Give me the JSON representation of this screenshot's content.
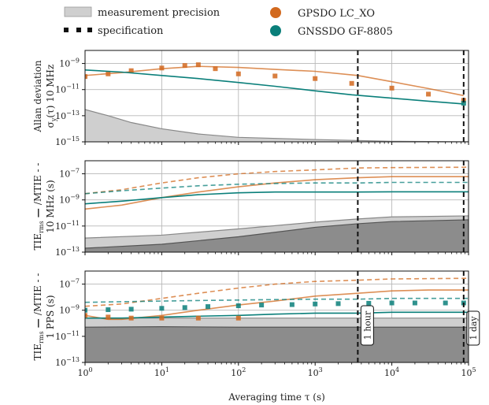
{
  "legend": {
    "items": [
      {
        "label": "measurement precision",
        "kind": "area"
      },
      {
        "label": "specification",
        "kind": "dots"
      },
      {
        "label": "GPSDO LC_XO",
        "kind": "marker",
        "series": "lcxo"
      },
      {
        "label": "GNSSDO GF-8805",
        "kind": "marker",
        "series": "gf"
      }
    ]
  },
  "colors": {
    "lcxo": "#d2691e",
    "gf": "#0a7f7a",
    "precision_light": "#cfcfcf",
    "precision_dark": "#8c8c8c",
    "grid": "#b8b8b8"
  },
  "chart_data": [
    {
      "id": "adev",
      "type": "line",
      "ylabel_line1": "Allan deviation",
      "ylabel_line2": "σ",
      "ylabel_sub": "y",
      "ylabel_rest": "(τ) 10 MHz",
      "scale": "log-log",
      "xlim": [
        1,
        100000
      ],
      "ylim": [
        1e-15,
        1e-08
      ],
      "yticks": [
        {
          "v": 1e-15,
          "base": "10",
          "exp": "−15"
        },
        {
          "v": 1e-13,
          "base": "10",
          "exp": "−13"
        },
        {
          "v": 1e-11,
          "base": "10",
          "exp": "−11"
        },
        {
          "v": 1e-09,
          "base": "10",
          "exp": "−9"
        }
      ],
      "grid": true,
      "vlines": [
        3600,
        86400
      ],
      "precision_light": [
        [
          1,
          3e-13
        ],
        [
          2,
          1e-13
        ],
        [
          4,
          3e-14
        ],
        [
          10,
          1e-14
        ],
        [
          30,
          4e-15
        ],
        [
          100,
          2.2e-15
        ],
        [
          1000,
          1.5e-15
        ],
        [
          10000,
          1.1e-15
        ],
        [
          100000,
          1e-15
        ]
      ],
      "series": [
        {
          "key": "lcxo",
          "style": "line",
          "points": [
            [
              1,
              1.2e-10
            ],
            [
              3,
              2e-10
            ],
            [
              10,
              4e-10
            ],
            [
              30,
              6e-10
            ],
            [
              100,
              5e-10
            ],
            [
              300,
              3.5e-10
            ],
            [
              1000,
              2.5e-10
            ],
            [
              3600,
              1.2e-10
            ],
            [
              10000,
              4e-11
            ],
            [
              30000,
              1.2e-11
            ],
            [
              86400,
              3.5e-12
            ]
          ]
        },
        {
          "key": "lcxo",
          "style": "dots",
          "points": [
            [
              1,
              1e-10
            ],
            [
              2,
              1.6e-10
            ],
            [
              4,
              2.8e-10
            ],
            [
              10,
              4.5e-10
            ],
            [
              20,
              7e-10
            ],
            [
              30,
              8e-10
            ],
            [
              50,
              4e-10
            ],
            [
              100,
              1.6e-10
            ],
            [
              300,
              1.1e-10
            ],
            [
              1000,
              7e-11
            ],
            [
              3000,
              3e-11
            ],
            [
              10000,
              1.3e-11
            ],
            [
              30000,
              4.5e-12
            ],
            [
              86400,
              1.5e-12
            ]
          ]
        },
        {
          "key": "gf",
          "style": "line",
          "points": [
            [
              1,
              3.2e-10
            ],
            [
              3,
              2.2e-10
            ],
            [
              10,
              1.2e-10
            ],
            [
              30,
              7e-11
            ],
            [
              100,
              3.5e-11
            ],
            [
              300,
              1.8e-11
            ],
            [
              1000,
              8e-12
            ],
            [
              3000,
              4e-12
            ],
            [
              10000,
              2.2e-12
            ],
            [
              30000,
              1.3e-12
            ],
            [
              86400,
              8e-13
            ]
          ]
        },
        {
          "key": "gf",
          "style": "dots",
          "points": [
            [
              86400,
              9e-13
            ]
          ]
        }
      ]
    },
    {
      "id": "tie10mhz",
      "type": "line",
      "ylabel_line1": "TIE",
      "ylabel_sub": "rms",
      "ylabel_line1_rest": "/MTIE",
      "ylabel_line2": "10 MHz  (s)",
      "scale": "log-log",
      "xlim": [
        1,
        100000
      ],
      "ylim": [
        1e-13,
        1e-06
      ],
      "yticks": [
        {
          "v": 1e-13,
          "base": "10",
          "exp": "−13"
        },
        {
          "v": 1e-11,
          "base": "10",
          "exp": "−11"
        },
        {
          "v": 1e-09,
          "base": "10",
          "exp": "−9"
        },
        {
          "v": 1e-07,
          "base": "10",
          "exp": "−7"
        }
      ],
      "grid": true,
      "vlines": [
        3600,
        86400
      ],
      "precision_light": [
        [
          1,
          1.2e-12
        ],
        [
          10,
          2e-12
        ],
        [
          100,
          6e-12
        ],
        [
          1000,
          2e-11
        ],
        [
          3600,
          3.5e-11
        ],
        [
          10000,
          5e-11
        ],
        [
          100000,
          6e-11
        ]
      ],
      "precision_dark": [
        [
          1,
          2e-13
        ],
        [
          10,
          4e-13
        ],
        [
          100,
          1.5e-12
        ],
        [
          1000,
          8e-12
        ],
        [
          3600,
          1.5e-11
        ],
        [
          10000,
          2.2e-11
        ],
        [
          100000,
          3e-11
        ]
      ],
      "series": [
        {
          "key": "lcxo",
          "style": "line",
          "points": [
            [
              1,
              2e-10
            ],
            [
              3,
              4e-10
            ],
            [
              10,
              1.5e-09
            ],
            [
              30,
              4e-09
            ],
            [
              100,
              1e-08
            ],
            [
              300,
              2e-08
            ],
            [
              1000,
              3.5e-08
            ],
            [
              3600,
              5e-08
            ],
            [
              10000,
              6e-08
            ],
            [
              30000,
              6e-08
            ],
            [
              100000,
              6e-08
            ]
          ]
        },
        {
          "key": "lcxo",
          "style": "dash",
          "points": [
            [
              1,
              3e-09
            ],
            [
              3,
              6e-09
            ],
            [
              10,
              2e-08
            ],
            [
              30,
              5e-08
            ],
            [
              100,
              1e-07
            ],
            [
              300,
              1.5e-07
            ],
            [
              1000,
              2e-07
            ],
            [
              3600,
              2.8e-07
            ],
            [
              10000,
              3e-07
            ],
            [
              100000,
              3.2e-07
            ]
          ]
        },
        {
          "key": "gf",
          "style": "line",
          "points": [
            [
              1,
              5e-10
            ],
            [
              3,
              8e-10
            ],
            [
              10,
              1.5e-09
            ],
            [
              30,
              2.5e-09
            ],
            [
              100,
              3.5e-09
            ],
            [
              300,
              4e-09
            ],
            [
              1000,
              4e-09
            ],
            [
              3600,
              4e-09
            ],
            [
              10000,
              4.2e-09
            ],
            [
              100000,
              4.2e-09
            ]
          ]
        },
        {
          "key": "gf",
          "style": "dash",
          "points": [
            [
              1,
              3e-09
            ],
            [
              3,
              5e-09
            ],
            [
              10,
              8e-09
            ],
            [
              30,
              1.2e-08
            ],
            [
              100,
              1.6e-08
            ],
            [
              300,
              1.8e-08
            ],
            [
              1000,
              2e-08
            ],
            [
              3600,
              2e-08
            ],
            [
              10000,
              2.2e-08
            ],
            [
              100000,
              2.2e-08
            ]
          ]
        }
      ]
    },
    {
      "id": "tie1pps",
      "type": "line",
      "ylabel_line1": "TIE",
      "ylabel_sub": "rms",
      "ylabel_line1_rest": "/MTIE",
      "ylabel_line2": "1 PPS  (s)",
      "xlabel": "Averaging time τ (s)",
      "scale": "log-log",
      "xlim": [
        1,
        100000
      ],
      "ylim": [
        1e-13,
        1e-06
      ],
      "xticks": [
        {
          "v": 1,
          "base": "10",
          "exp": "0"
        },
        {
          "v": 10,
          "base": "10",
          "exp": "1"
        },
        {
          "v": 100,
          "base": "10",
          "exp": "2"
        },
        {
          "v": 1000,
          "base": "10",
          "exp": "3"
        },
        {
          "v": 10000,
          "base": "10",
          "exp": "4"
        },
        {
          "v": 100000,
          "base": "10",
          "exp": "5"
        }
      ],
      "yticks": [
        {
          "v": 1e-13,
          "base": "10",
          "exp": "−13"
        },
        {
          "v": 1e-11,
          "base": "10",
          "exp": "−11"
        },
        {
          "v": 1e-09,
          "base": "10",
          "exp": "−9"
        },
        {
          "v": 1e-07,
          "base": "10",
          "exp": "−7"
        }
      ],
      "grid": true,
      "vlines": [
        3600,
        86400
      ],
      "vline_labels": [
        {
          "x": 3600,
          "text": "1 hour"
        },
        {
          "x": 86400,
          "text": "1 day"
        }
      ],
      "precision_light": [
        [
          1,
          2.5e-10
        ],
        [
          10,
          2.5e-10
        ],
        [
          100,
          2.5e-10
        ],
        [
          1000,
          2.5e-10
        ],
        [
          10000,
          2.5e-10
        ],
        [
          100000,
          2.5e-10
        ]
      ],
      "precision_dark": [
        [
          1,
          5e-11
        ],
        [
          10,
          5.5e-11
        ],
        [
          100,
          5e-11
        ],
        [
          1000,
          5e-11
        ],
        [
          10000,
          5e-11
        ],
        [
          100000,
          5e-11
        ]
      ],
      "series": [
        {
          "key": "lcxo",
          "style": "line",
          "points": [
            [
              1,
              4e-10
            ],
            [
              2,
              2e-10
            ],
            [
              3,
              2e-10
            ],
            [
              10,
              4e-10
            ],
            [
              30,
              1e-09
            ],
            [
              100,
              2.5e-09
            ],
            [
              300,
              5e-09
            ],
            [
              1000,
              1.2e-08
            ],
            [
              3600,
              2e-08
            ],
            [
              10000,
              3e-08
            ],
            [
              30000,
              3.5e-08
            ],
            [
              100000,
              3.5e-08
            ]
          ]
        },
        {
          "key": "lcxo",
          "style": "dash",
          "points": [
            [
              1,
              2e-09
            ],
            [
              3,
              3e-09
            ],
            [
              10,
              8e-09
            ],
            [
              30,
              2e-08
            ],
            [
              100,
              5e-08
            ],
            [
              300,
              1e-07
            ],
            [
              1000,
              1.6e-07
            ],
            [
              3600,
              2e-07
            ],
            [
              10000,
              2.5e-07
            ],
            [
              100000,
              2.8e-07
            ]
          ]
        },
        {
          "key": "gf",
          "style": "line",
          "points": [
            [
              1,
              2.5e-10
            ],
            [
              3,
              2.5e-10
            ],
            [
              10,
              3e-10
            ],
            [
              30,
              3.5e-10
            ],
            [
              100,
              4e-10
            ],
            [
              300,
              5e-10
            ],
            [
              1000,
              6e-10
            ],
            [
              3600,
              6e-10
            ],
            [
              10000,
              7e-10
            ],
            [
              100000,
              7e-10
            ]
          ]
        },
        {
          "key": "gf",
          "style": "dash",
          "points": [
            [
              1,
              4e-09
            ],
            [
              3,
              4.5e-09
            ],
            [
              10,
              5e-09
            ],
            [
              30,
              5.5e-09
            ],
            [
              100,
              6e-09
            ],
            [
              300,
              6.5e-09
            ],
            [
              1000,
              7e-09
            ],
            [
              3600,
              7e-09
            ],
            [
              10000,
              8e-09
            ],
            [
              100000,
              8e-09
            ]
          ]
        },
        {
          "key": "lcxo",
          "style": "dots",
          "points": [
            [
              1,
              4e-10
            ],
            [
              2,
              3e-10
            ],
            [
              4,
              2.5e-10
            ],
            [
              10,
              2.5e-10
            ],
            [
              30,
              2.5e-10
            ],
            [
              100,
              2.5e-10
            ]
          ]
        },
        {
          "key": "gf",
          "style": "dots",
          "points": [
            [
              1,
              1e-09
            ],
            [
              2,
              1.1e-09
            ],
            [
              4,
              1.2e-09
            ],
            [
              10,
              1.4e-09
            ],
            [
              20,
              1.6e-09
            ],
            [
              40,
              1.9e-09
            ],
            [
              100,
              2.2e-09
            ],
            [
              200,
              2.5e-09
            ],
            [
              500,
              2.7e-09
            ],
            [
              1000,
              3e-09
            ],
            [
              2000,
              3.2e-09
            ],
            [
              5000,
              3.4e-09
            ],
            [
              10000,
              3.6e-09
            ],
            [
              20000,
              3.6e-09
            ],
            [
              50000,
              3.6e-09
            ],
            [
              86400,
              3.6e-09
            ]
          ]
        }
      ]
    }
  ]
}
